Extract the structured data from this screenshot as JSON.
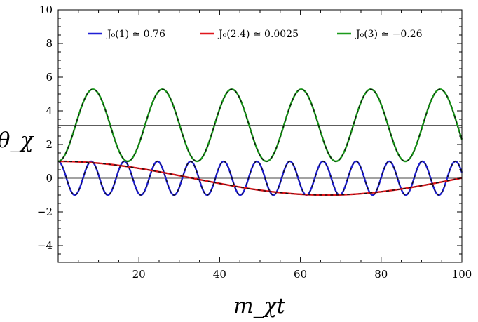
{
  "chart_data": {
    "type": "line",
    "xlabel": "m_χt",
    "ylabel": "θ_χ",
    "xlim": [
      0,
      100
    ],
    "ylim": [
      -5,
      10
    ],
    "x_ticks": [
      20,
      40,
      60,
      80,
      100
    ],
    "x_tick_labels": [
      "20",
      "40",
      "60",
      "80",
      "100"
    ],
    "y_ticks": [
      -4,
      -2,
      0,
      2,
      4,
      6,
      8,
      10
    ],
    "y_tick_labels": [
      "−4",
      "−2",
      "0",
      "2",
      "4",
      "6",
      "8",
      "10"
    ],
    "legend_position": "top",
    "reference_lines": [
      {
        "y": 0,
        "color": "#444444"
      },
      {
        "y": 3.14159,
        "color": "#444444"
      }
    ],
    "series": [
      {
        "name": "J₀(1) ≃ 0.76",
        "color": "#1f1fd6",
        "form": "cosine",
        "amplitude": 1.0,
        "offset": 0.0,
        "period": 8.2,
        "x_start": 0,
        "x_end": 100
      },
      {
        "name": "J₀(2.4) ≃ 0.0025",
        "color": "#e0161c",
        "form": "cosine",
        "amplitude": 1.0,
        "offset": 0.0,
        "period": 133,
        "x_start": 0,
        "x_end": 100
      },
      {
        "name": "J₀(3) ≃ −0.26",
        "color": "#1b9a1b",
        "form": "cosine",
        "amplitude": -2.14,
        "offset": 3.14,
        "period": 17.2,
        "x_start": 0,
        "x_end": 100
      }
    ]
  }
}
